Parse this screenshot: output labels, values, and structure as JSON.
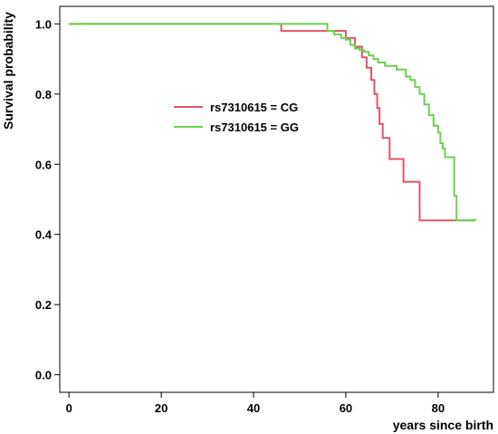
{
  "chart_data": {
    "type": "line",
    "xlabel": "years since birth",
    "ylabel": "Survival probability",
    "xlim": [
      -2,
      92
    ],
    "ylim": [
      -0.05,
      1.05
    ],
    "xticks": [
      0,
      20,
      40,
      60,
      80
    ],
    "yticks": [
      0.0,
      0.2,
      0.4,
      0.6,
      0.8,
      1.0
    ],
    "ytick_labels": [
      "0.0",
      "0.2",
      "0.4",
      "0.6",
      "0.8",
      "1.0"
    ],
    "grid": false,
    "legend_placement": "center-left",
    "series": [
      {
        "name": "rs7310615 = CG",
        "color": "#e15468",
        "step": true,
        "x": [
          0,
          46,
          60,
          62,
          63.5,
          64.5,
          65.5,
          66.2,
          66.8,
          67.3,
          68,
          69.5,
          72.5,
          76,
          88
        ],
        "y": [
          1.0,
          0.98,
          0.96,
          0.935,
          0.905,
          0.875,
          0.84,
          0.8,
          0.76,
          0.715,
          0.675,
          0.615,
          0.55,
          0.44,
          0.44
        ]
      },
      {
        "name": "rs7310615 = GG",
        "color": "#6ad24e",
        "step": true,
        "x": [
          0,
          56,
          57.5,
          59,
          60,
          61,
          62,
          63,
          64,
          65,
          66,
          67,
          68.5,
          71,
          73,
          74,
          75,
          76,
          77,
          78,
          79,
          80,
          80.5,
          81,
          81.5,
          82.5,
          83.5,
          84,
          88
        ],
        "y": [
          1.0,
          0.98,
          0.97,
          0.96,
          0.955,
          0.94,
          0.93,
          0.925,
          0.92,
          0.91,
          0.9,
          0.89,
          0.88,
          0.87,
          0.85,
          0.84,
          0.82,
          0.8,
          0.77,
          0.74,
          0.71,
          0.69,
          0.66,
          0.645,
          0.62,
          0.62,
          0.51,
          0.44,
          0.445
        ]
      }
    ]
  }
}
